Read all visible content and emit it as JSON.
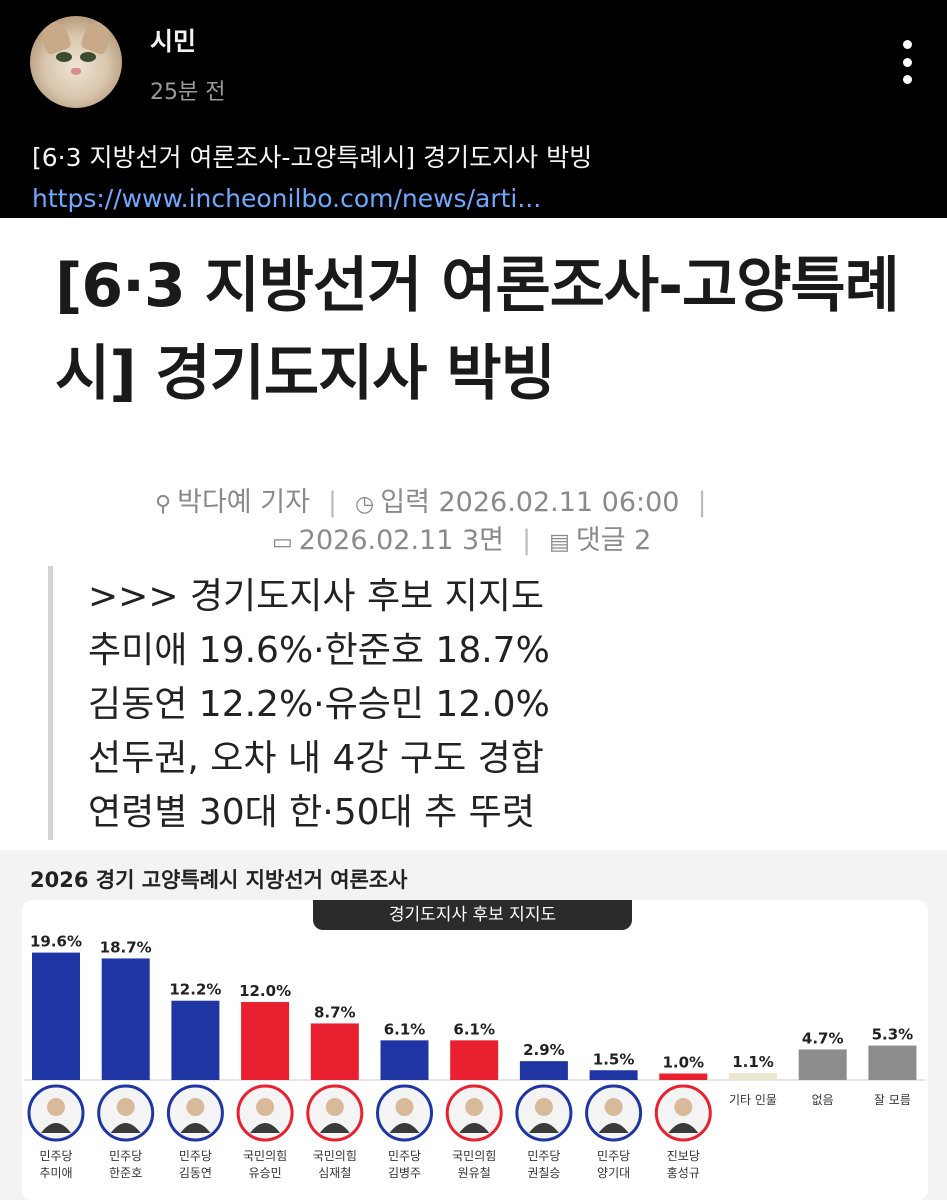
{
  "post": {
    "username": "시민",
    "time": "25분 전",
    "title": "[6·3 지방선거 여론조사-고양특례시] 경기도지사 박빙",
    "link_text": "https://www.incheonilbo.com/news/arti..."
  },
  "article": {
    "title": "[6·3 지방선거 여론조사-고양특례시] 경기도지사 박빙",
    "byline": "박다예 기자",
    "input_label": "입력 2026.02.11 06:00",
    "print_date": "2026.02.11 3면",
    "comments": "댓글 2",
    "quote_lines": [
      ">>> 경기도지사 후보 지지도",
      "추미애 19.6%·한준호 18.7%",
      "김동연 12.2%·유승민 12.0%",
      "선두권, 오차 내 4강 구도 경합",
      "연령별 30대 한·50대 추 뚜렷"
    ]
  },
  "chart_heading": "2026 경기 고양특례시 지방선거 여론조사",
  "chart_subtitle": "경기도지사 후보 지지도",
  "colors": {
    "blue": "#1f35a4",
    "red": "#e8202f",
    "gray": "#8c8c8c",
    "beige": "#e9e5cf",
    "link": "#6ea8ff"
  },
  "chart_data": {
    "type": "bar",
    "title": "경기도지사 후보 지지도",
    "categories": [
      "추미애",
      "한준호",
      "김동연",
      "유승민",
      "심재철",
      "김병주",
      "원유철",
      "권칠승",
      "양기대",
      "홍성규",
      "기타 인물",
      "없음",
      "잘 모름"
    ],
    "parties": [
      "민주당",
      "민주당",
      "민주당",
      "국민의힘",
      "국민의힘",
      "민주당",
      "국민의힘",
      "민주당",
      "민주당",
      "진보당",
      "",
      "",
      ""
    ],
    "values": [
      19.6,
      18.7,
      12.2,
      12.0,
      8.7,
      6.1,
      6.1,
      2.9,
      1.5,
      1.0,
      1.1,
      4.7,
      5.3
    ],
    "value_labels": [
      "19.6%",
      "18.7%",
      "12.2%",
      "12.0%",
      "8.7%",
      "6.1%",
      "6.1%",
      "2.9%",
      "1.5%",
      "1.0%",
      "1.1%",
      "4.7%",
      "5.3%"
    ],
    "colors": [
      "blue",
      "blue",
      "blue",
      "red",
      "red",
      "blue",
      "red",
      "blue",
      "blue",
      "red",
      "beige",
      "gray",
      "gray"
    ],
    "ylim": [
      0,
      20
    ]
  }
}
